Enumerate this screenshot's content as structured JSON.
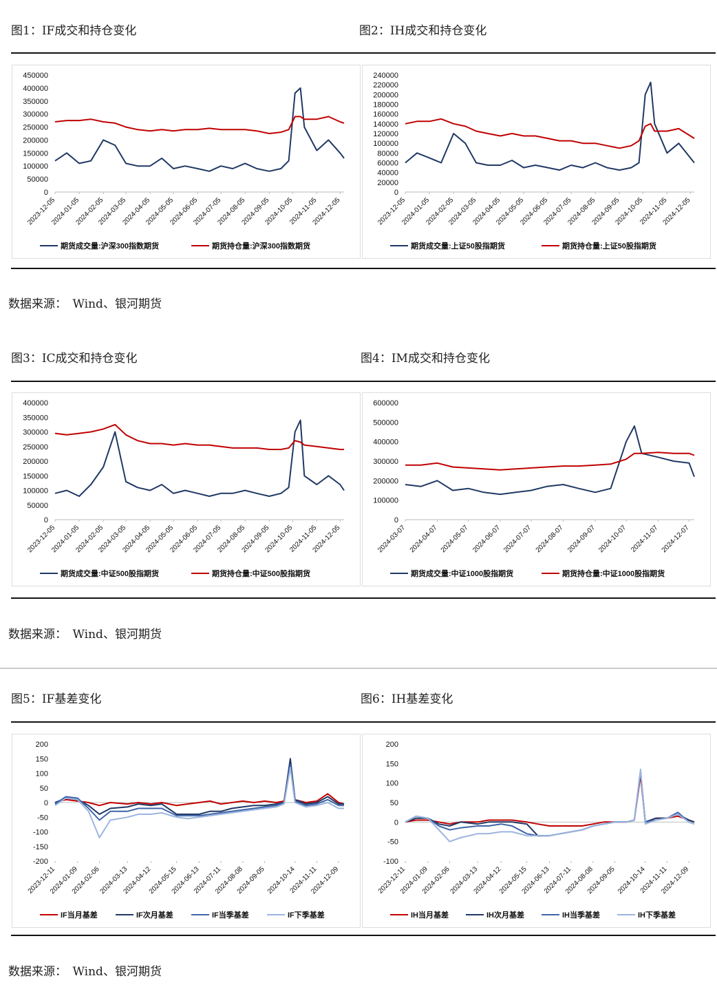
{
  "chart_data": [
    {
      "type": "line",
      "title": "图1：IF成交和持仓变化",
      "x": [
        "2023-12-05",
        "2023-12-20",
        "2024-01-05",
        "2024-01-20",
        "2024-02-05",
        "2024-02-20",
        "2024-03-05",
        "2024-03-20",
        "2024-04-05",
        "2024-04-20",
        "2024-05-05",
        "2024-05-20",
        "2024-06-05",
        "2024-06-20",
        "2024-07-05",
        "2024-07-20",
        "2024-08-05",
        "2024-08-20",
        "2024-09-05",
        "2024-09-20",
        "2024-09-30",
        "2024-10-08",
        "2024-10-15",
        "2024-10-20",
        "2024-11-05",
        "2024-11-20",
        "2024-12-05",
        "2024-12-10"
      ],
      "xlim": [
        "2023-12-05",
        "2024-12-10"
      ],
      "xticks": [
        "2023-12-05",
        "2024-01-05",
        "2024-02-05",
        "2024-03-05",
        "2024-04-05",
        "2024-05-05",
        "2024-06-05",
        "2024-07-05",
        "2024-08-05",
        "2024-09-05",
        "2024-10-05",
        "2024-11-05",
        "2024-12-05"
      ],
      "ylim": [
        0,
        450000
      ],
      "yticks": [
        0,
        50000,
        100000,
        150000,
        200000,
        250000,
        300000,
        350000,
        400000,
        450000
      ],
      "series": [
        {
          "name": "期货成交量:沪深300指数期货",
          "color": "#1f3864",
          "values": [
            120000,
            150000,
            110000,
            120000,
            200000,
            180000,
            110000,
            100000,
            100000,
            130000,
            90000,
            100000,
            90000,
            80000,
            100000,
            90000,
            110000,
            90000,
            80000,
            90000,
            120000,
            380000,
            400000,
            250000,
            160000,
            200000,
            150000,
            130000
          ]
        },
        {
          "name": "期货持仓量:沪深300指数期货",
          "color": "#c00000",
          "values": [
            270000,
            275000,
            275000,
            280000,
            270000,
            265000,
            250000,
            240000,
            235000,
            240000,
            235000,
            240000,
            240000,
            245000,
            240000,
            240000,
            240000,
            235000,
            225000,
            230000,
            240000,
            290000,
            290000,
            280000,
            280000,
            290000,
            270000,
            265000
          ]
        }
      ]
    },
    {
      "type": "line",
      "title": "图2：IH成交和持仓变化",
      "x": [
        "2023-12-05",
        "2023-12-20",
        "2024-01-05",
        "2024-01-20",
        "2024-02-05",
        "2024-02-20",
        "2024-03-05",
        "2024-03-20",
        "2024-04-05",
        "2024-04-20",
        "2024-05-05",
        "2024-05-20",
        "2024-06-05",
        "2024-06-20",
        "2024-07-05",
        "2024-07-20",
        "2024-08-05",
        "2024-08-20",
        "2024-09-05",
        "2024-09-20",
        "2024-09-30",
        "2024-10-08",
        "2024-10-15",
        "2024-10-20",
        "2024-11-05",
        "2024-11-20",
        "2024-12-05",
        "2024-12-10"
      ],
      "xlim": [
        "2023-12-05",
        "2024-12-10"
      ],
      "xticks": [
        "2023-12-05",
        "2024-01-05",
        "2024-02-05",
        "2024-03-05",
        "2024-04-05",
        "2024-05-05",
        "2024-06-05",
        "2024-07-05",
        "2024-08-05",
        "2024-09-05",
        "2024-10-05",
        "2024-11-05",
        "2024-12-05"
      ],
      "ylim": [
        0,
        240000
      ],
      "yticks": [
        0,
        20000,
        40000,
        60000,
        80000,
        100000,
        120000,
        140000,
        160000,
        180000,
        200000,
        220000,
        240000
      ],
      "series": [
        {
          "name": "期货成交量:上证50股指期货",
          "color": "#1f3864",
          "values": [
            60000,
            80000,
            70000,
            60000,
            120000,
            100000,
            60000,
            55000,
            55000,
            65000,
            50000,
            55000,
            50000,
            45000,
            55000,
            50000,
            60000,
            50000,
            45000,
            50000,
            60000,
            200000,
            225000,
            140000,
            80000,
            100000,
            70000,
            60000
          ]
        },
        {
          "name": "期货持仓量:上证50股指期货",
          "color": "#c00000",
          "values": [
            140000,
            145000,
            145000,
            150000,
            140000,
            135000,
            125000,
            120000,
            115000,
            120000,
            115000,
            115000,
            110000,
            105000,
            105000,
            100000,
            100000,
            95000,
            90000,
            95000,
            105000,
            135000,
            140000,
            125000,
            125000,
            130000,
            115000,
            110000
          ]
        }
      ]
    },
    {
      "type": "line",
      "title": "图3：IC成交和持仓变化",
      "x": [
        "2023-12-05",
        "2023-12-20",
        "2024-01-05",
        "2024-01-20",
        "2024-02-05",
        "2024-02-20",
        "2024-03-05",
        "2024-03-20",
        "2024-04-05",
        "2024-04-20",
        "2024-05-05",
        "2024-05-20",
        "2024-06-05",
        "2024-06-20",
        "2024-07-05",
        "2024-07-20",
        "2024-08-05",
        "2024-08-20",
        "2024-09-05",
        "2024-09-20",
        "2024-09-30",
        "2024-10-08",
        "2024-10-15",
        "2024-10-20",
        "2024-11-05",
        "2024-11-20",
        "2024-12-05",
        "2024-12-10"
      ],
      "xlim": [
        "2023-12-05",
        "2024-12-10"
      ],
      "xticks": [
        "2023-12-05",
        "2024-01-05",
        "2024-02-05",
        "2024-03-05",
        "2024-04-05",
        "2024-05-05",
        "2024-06-05",
        "2024-07-05",
        "2024-08-05",
        "2024-09-05",
        "2024-10-05",
        "2024-11-05",
        "2024-12-05"
      ],
      "ylim": [
        0,
        400000
      ],
      "yticks": [
        0,
        50000,
        100000,
        150000,
        200000,
        250000,
        300000,
        350000,
        400000
      ],
      "series": [
        {
          "name": "期货成交量:中证500股指期货",
          "color": "#1f3864",
          "values": [
            90000,
            100000,
            80000,
            120000,
            180000,
            300000,
            130000,
            110000,
            100000,
            120000,
            90000,
            100000,
            90000,
            80000,
            90000,
            90000,
            100000,
            90000,
            80000,
            90000,
            110000,
            300000,
            340000,
            150000,
            120000,
            150000,
            120000,
            100000
          ]
        },
        {
          "name": "期货持仓量:中证500股指期货",
          "color": "#c00000",
          "values": [
            295000,
            290000,
            295000,
            300000,
            310000,
            325000,
            290000,
            270000,
            260000,
            260000,
            255000,
            260000,
            255000,
            255000,
            250000,
            245000,
            245000,
            245000,
            240000,
            240000,
            245000,
            270000,
            265000,
            255000,
            250000,
            245000,
            240000,
            240000
          ]
        }
      ]
    },
    {
      "type": "line",
      "title": "图4：IM成交和持仓变化",
      "x": [
        "2024-03-07",
        "2024-03-22",
        "2024-04-07",
        "2024-04-22",
        "2024-05-07",
        "2024-05-22",
        "2024-06-07",
        "2024-06-22",
        "2024-07-07",
        "2024-07-22",
        "2024-08-07",
        "2024-08-22",
        "2024-09-07",
        "2024-09-22",
        "2024-10-07",
        "2024-10-15",
        "2024-10-22",
        "2024-11-07",
        "2024-11-22",
        "2024-12-07",
        "2024-12-12"
      ],
      "xlim": [
        "2024-03-07",
        "2024-12-12"
      ],
      "xticks": [
        "2024-03-07",
        "2024-04-07",
        "2024-05-07",
        "2024-06-07",
        "2024-07-07",
        "2024-08-07",
        "2024-09-07",
        "2024-10-07",
        "2024-11-07",
        "2024-12-07"
      ],
      "ylim": [
        0,
        600000
      ],
      "yticks": [
        0,
        100000,
        200000,
        300000,
        400000,
        500000,
        600000
      ],
      "series": [
        {
          "name": "期货成交量:中证1000股指期货",
          "color": "#1f3864",
          "values": [
            180000,
            170000,
            200000,
            150000,
            160000,
            140000,
            130000,
            140000,
            150000,
            170000,
            180000,
            160000,
            140000,
            160000,
            400000,
            480000,
            340000,
            320000,
            300000,
            290000,
            220000
          ]
        },
        {
          "name": "期货持仓量:中证1000股指期货",
          "color": "#c00000",
          "values": [
            280000,
            280000,
            290000,
            270000,
            265000,
            260000,
            255000,
            260000,
            265000,
            270000,
            275000,
            275000,
            280000,
            285000,
            310000,
            340000,
            340000,
            345000,
            340000,
            340000,
            330000
          ]
        }
      ]
    },
    {
      "type": "line",
      "title": "图5：IF基差变化",
      "x": [
        "2023-12-11",
        "2023-12-25",
        "2024-01-09",
        "2024-01-23",
        "2024-02-06",
        "2024-02-20",
        "2024-03-13",
        "2024-03-27",
        "2024-04-12",
        "2024-04-26",
        "2024-05-15",
        "2024-05-29",
        "2024-06-13",
        "2024-06-27",
        "2024-07-11",
        "2024-07-25",
        "2024-08-08",
        "2024-08-22",
        "2024-09-05",
        "2024-09-20",
        "2024-09-30",
        "2024-10-08",
        "2024-10-14",
        "2024-10-28",
        "2024-11-11",
        "2024-11-25",
        "2024-12-09",
        "2024-12-16"
      ],
      "xlim": [
        "2023-12-11",
        "2024-12-16"
      ],
      "xticks": [
        "2023-12-11",
        "2024-01-09",
        "2024-02-06",
        "2024-03-13",
        "2024-04-12",
        "2024-05-15",
        "2024-06-13",
        "2024-07-11",
        "2024-08-08",
        "2024-09-05",
        "2024-10-14",
        "2024-11-11",
        "2024-12-09"
      ],
      "ylim": [
        -200,
        200
      ],
      "yticks": [
        -200,
        -150,
        -100,
        -50,
        0,
        50,
        100,
        150,
        200
      ],
      "series": [
        {
          "name": "IF当月基差",
          "color": "#c00000",
          "values": [
            0,
            10,
            5,
            0,
            -10,
            0,
            -5,
            0,
            -5,
            0,
            -10,
            -5,
            0,
            5,
            -5,
            0,
            5,
            0,
            5,
            0,
            5,
            140,
            10,
            0,
            5,
            30,
            0,
            -5
          ]
        },
        {
          "name": "IF次月基差",
          "color": "#1f3864",
          "values": [
            0,
            15,
            10,
            -10,
            -40,
            -20,
            -15,
            -5,
            -10,
            -5,
            -40,
            -40,
            -40,
            -30,
            -30,
            -20,
            -15,
            -10,
            -10,
            -5,
            0,
            150,
            10,
            -5,
            0,
            20,
            -5,
            -5
          ]
        },
        {
          "name": "IF当季基差",
          "color": "#3d64a8",
          "values": [
            -5,
            20,
            15,
            -20,
            -60,
            -30,
            -30,
            -20,
            -20,
            -20,
            -45,
            -45,
            -45,
            -40,
            -35,
            -30,
            -25,
            -20,
            -15,
            -10,
            0,
            130,
            5,
            -10,
            -5,
            10,
            -10,
            -10
          ]
        },
        {
          "name": "IF下季基差",
          "color": "#9bb5e0",
          "values": [
            -10,
            15,
            10,
            -30,
            -120,
            -60,
            -50,
            -40,
            -40,
            -35,
            -50,
            -55,
            -50,
            -45,
            -40,
            -35,
            -30,
            -25,
            -20,
            -15,
            -5,
            120,
            0,
            -15,
            -10,
            0,
            -20,
            -20
          ]
        }
      ]
    },
    {
      "type": "line",
      "title": "图6：IH基差变化",
      "x": [
        "2023-12-11",
        "2023-12-25",
        "2024-01-09",
        "2024-01-23",
        "2024-02-06",
        "2024-02-20",
        "2024-03-13",
        "2024-03-27",
        "2024-04-12",
        "2024-04-26",
        "2024-05-15",
        "2024-05-29",
        "2024-06-13",
        "2024-06-27",
        "2024-07-11",
        "2024-07-25",
        "2024-08-08",
        "2024-08-22",
        "2024-09-05",
        "2024-09-20",
        "2024-09-30",
        "2024-10-08",
        "2024-10-14",
        "2024-10-28",
        "2024-11-11",
        "2024-11-25",
        "2024-12-09",
        "2024-12-16"
      ],
      "xlim": [
        "2023-12-11",
        "2024-12-16"
      ],
      "xticks": [
        "2023-12-11",
        "2024-01-09",
        "2024-02-06",
        "2024-03-13",
        "2024-04-12",
        "2024-05-15",
        "2024-06-13",
        "2024-07-11",
        "2024-08-08",
        "2024-09-05",
        "2024-10-14",
        "2024-11-11",
        "2024-12-09"
      ],
      "ylim": [
        -100,
        200
      ],
      "yticks": [
        -100,
        -50,
        0,
        50,
        100,
        150,
        200
      ],
      "series": [
        {
          "name": "IH当月基差",
          "color": "#c00000",
          "values": [
            0,
            5,
            5,
            0,
            -5,
            0,
            0,
            5,
            5,
            5,
            0,
            -5,
            -10,
            -10,
            -10,
            -10,
            -5,
            0,
            0,
            0,
            5,
            120,
            0,
            10,
            10,
            15,
            5,
            0
          ]
        },
        {
          "name": "IH次月基差",
          "color": "#1f3864",
          "values": [
            0,
            10,
            10,
            -5,
            -10,
            0,
            -5,
            0,
            0,
            0,
            -5,
            -35,
            -35,
            -30,
            -25,
            -20,
            -10,
            -5,
            0,
            0,
            5,
            130,
            0,
            10,
            10,
            20,
            5,
            0
          ]
        },
        {
          "name": "IH当季基差",
          "color": "#3d64a8",
          "values": [
            0,
            15,
            10,
            -10,
            -20,
            -15,
            -10,
            -10,
            -5,
            -10,
            -30,
            -35,
            -35,
            -30,
            -25,
            -20,
            -10,
            -5,
            0,
            0,
            5,
            130,
            0,
            5,
            10,
            25,
            0,
            -5
          ]
        },
        {
          "name": "IH下季基差",
          "color": "#9bb5e0",
          "values": [
            0,
            15,
            10,
            -20,
            -50,
            -40,
            -30,
            -30,
            -25,
            -25,
            -35,
            -35,
            -35,
            -30,
            -25,
            -20,
            -10,
            -5,
            0,
            0,
            5,
            135,
            -5,
            5,
            10,
            20,
            0,
            -5
          ]
        }
      ]
    }
  ],
  "sources": [
    "数据来源：　Wind、银河期货",
    "数据来源：　Wind、银河期货",
    "数据来源：　Wind、银河期货"
  ]
}
